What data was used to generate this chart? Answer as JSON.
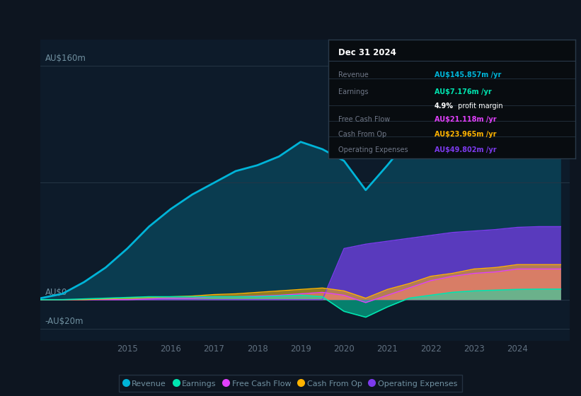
{
  "bg_color": "#0d1520",
  "plot_bg_color": "#0d1b2a",
  "ylabel_160": "AU$160m",
  "ylabel_0": "AU$0",
  "ylabel_neg20": "-AU$20m",
  "years": [
    2013.0,
    2013.5,
    2014.0,
    2014.5,
    2015.0,
    2015.5,
    2016.0,
    2016.5,
    2017.0,
    2017.5,
    2018.0,
    2018.5,
    2019.0,
    2019.5,
    2020.0,
    2020.5,
    2021.0,
    2021.5,
    2022.0,
    2022.5,
    2023.0,
    2023.5,
    2024.0,
    2024.5,
    2025.0
  ],
  "revenue": [
    1,
    4,
    12,
    22,
    35,
    50,
    62,
    72,
    80,
    88,
    92,
    98,
    108,
    103,
    95,
    75,
    92,
    110,
    124,
    134,
    139,
    143,
    147,
    145,
    146
  ],
  "earnings": [
    0,
    0,
    0.5,
    1,
    1.5,
    2,
    2,
    2,
    2,
    2,
    2,
    2.5,
    3,
    2,
    -8,
    -12,
    -5,
    1,
    3,
    5,
    6,
    6.5,
    7,
    7.2,
    7.2
  ],
  "fcf": [
    0,
    0,
    0,
    0,
    0,
    0.5,
    1,
    1,
    2,
    2,
    2.5,
    3,
    4,
    5,
    3,
    -2,
    3,
    8,
    13,
    16,
    18,
    19,
    21,
    21,
    21
  ],
  "cashfromop": [
    0,
    0,
    0,
    0.5,
    1,
    1.5,
    2,
    2.5,
    3.5,
    4,
    5,
    6,
    7,
    8,
    6,
    1,
    7,
    11,
    16,
    18,
    21,
    22,
    24,
    24,
    24
  ],
  "opex": [
    0,
    0,
    0,
    0,
    0,
    0,
    0,
    0,
    0,
    0,
    0,
    0,
    0,
    0,
    35,
    38,
    40,
    42,
    44,
    46,
    47,
    48,
    49.5,
    50,
    50
  ],
  "revenue_color": "#00b4d8",
  "earnings_color": "#00e5b0",
  "fcf_color": "#e040fb",
  "cashfromop_color": "#ffb300",
  "opex_color": "#7c3aed",
  "grid_color": "#253545",
  "tick_color": "#607080",
  "label_color": "#7090a0",
  "info_box": {
    "date": "Dec 31 2024",
    "revenue_label": "Revenue",
    "revenue_value": "AU$145.857m",
    "earnings_label": "Earnings",
    "earnings_value": "AU$7.176m",
    "profit_margin": "4.9%",
    "fcf_label": "Free Cash Flow",
    "fcf_value": "AU$21.118m",
    "cashfromop_label": "Cash From Op",
    "cashfromop_value": "AU$23.965m",
    "opex_label": "Operating Expenses",
    "opex_value": "AU$49.802m"
  },
  "legend": [
    {
      "label": "Revenue",
      "color": "#00b4d8"
    },
    {
      "label": "Earnings",
      "color": "#00e5b0"
    },
    {
      "label": "Free Cash Flow",
      "color": "#e040fb"
    },
    {
      "label": "Cash From Op",
      "color": "#ffb300"
    },
    {
      "label": "Operating Expenses",
      "color": "#7c3aed"
    }
  ],
  "x_ticks": [
    2015,
    2016,
    2017,
    2018,
    2019,
    2020,
    2021,
    2022,
    2023,
    2024
  ],
  "ylim_min": -28,
  "ylim_max": 178,
  "xlim_min": 2013.0,
  "xlim_max": 2025.2
}
